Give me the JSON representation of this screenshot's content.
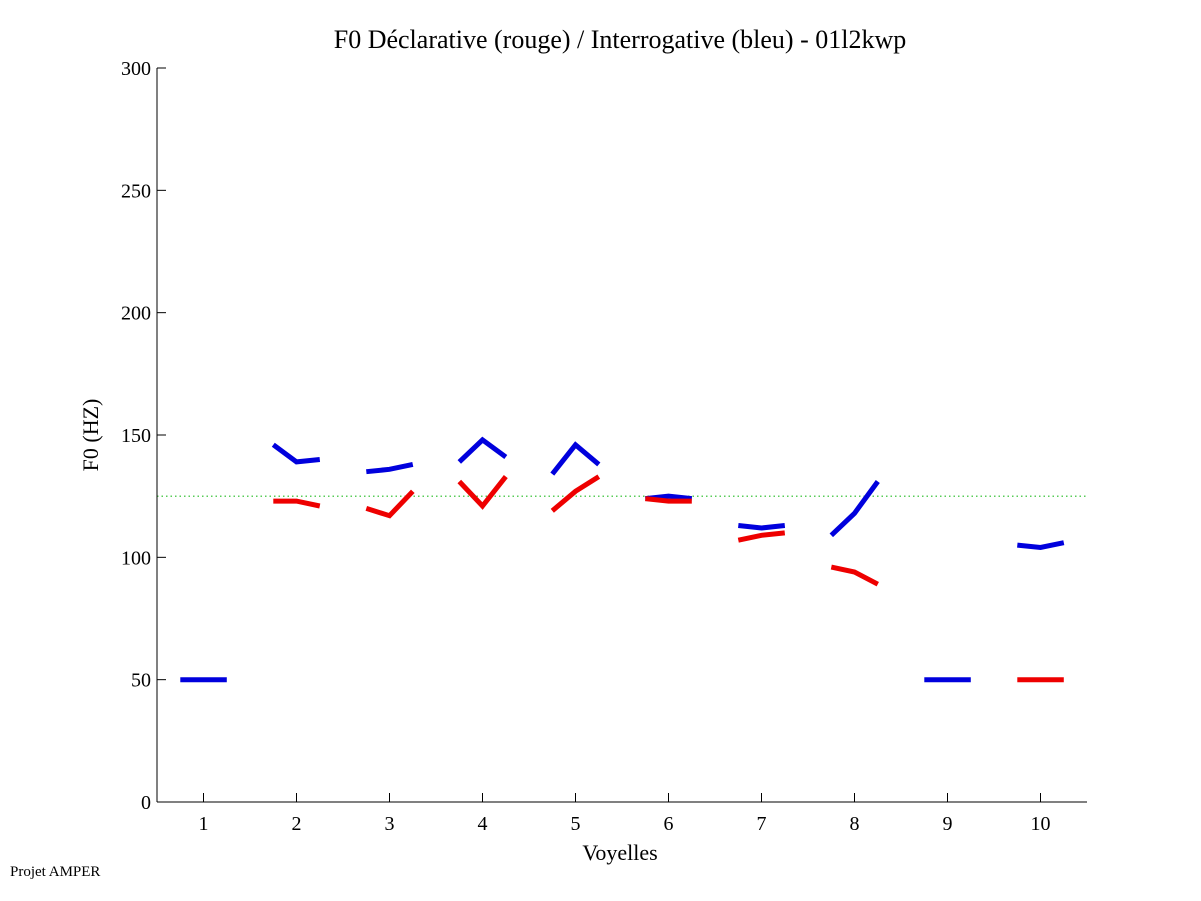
{
  "chart_data": {
    "type": "line",
    "title": "F0 Déclarative (rouge) / Interrogative (bleu) - 01l2kwp",
    "xlabel": "Voyelles",
    "ylabel": "F0 (HZ)",
    "xlim": [
      0.5,
      10.5
    ],
    "ylim": [
      0,
      300
    ],
    "xticks": [
      "1",
      "2",
      "3",
      "4",
      "5",
      "6",
      "7",
      "8",
      "9",
      "10"
    ],
    "yticks": [
      "0",
      "50",
      "100",
      "150",
      "200",
      "250",
      "300"
    ],
    "reference_line": {
      "value": 125,
      "color": "#22bb22",
      "style": "dotted"
    },
    "series": [
      {
        "name": "Interrogative (bleu)",
        "color": "#0000dd",
        "segments": [
          {
            "vowel": 1,
            "x": [
              0.75,
              1.0,
              1.25
            ],
            "y": [
              50,
              50,
              50
            ]
          },
          {
            "vowel": 2,
            "x": [
              1.75,
              2.0,
              2.25
            ],
            "y": [
              146,
              139,
              140
            ]
          },
          {
            "vowel": 3,
            "x": [
              2.75,
              3.0,
              3.25
            ],
            "y": [
              135,
              136,
              138
            ]
          },
          {
            "vowel": 4,
            "x": [
              3.75,
              4.0,
              4.25
            ],
            "y": [
              139,
              148,
              141
            ]
          },
          {
            "vowel": 5,
            "x": [
              4.75,
              5.0,
              5.25
            ],
            "y": [
              134,
              146,
              138
            ]
          },
          {
            "vowel": 6,
            "x": [
              5.75,
              6.0,
              6.25
            ],
            "y": [
              124,
              125,
              124
            ]
          },
          {
            "vowel": 7,
            "x": [
              6.75,
              7.0,
              7.25
            ],
            "y": [
              113,
              112,
              113
            ]
          },
          {
            "vowel": 8,
            "x": [
              7.75,
              8.0,
              8.25
            ],
            "y": [
              109,
              118,
              131
            ]
          },
          {
            "vowel": 9,
            "x": [
              8.75,
              9.0,
              9.25
            ],
            "y": [
              50,
              50,
              50
            ]
          },
          {
            "vowel": 10,
            "x": [
              9.75,
              10.0,
              10.25
            ],
            "y": [
              105,
              104,
              106
            ]
          }
        ]
      },
      {
        "name": "Déclarative (rouge)",
        "color": "#ee0000",
        "segments": [
          {
            "vowel": 2,
            "x": [
              1.75,
              2.0,
              2.25
            ],
            "y": [
              123,
              123,
              121
            ]
          },
          {
            "vowel": 3,
            "x": [
              2.75,
              3.0,
              3.25
            ],
            "y": [
              120,
              117,
              127
            ]
          },
          {
            "vowel": 4,
            "x": [
              3.75,
              4.0,
              4.25
            ],
            "y": [
              131,
              121,
              133
            ]
          },
          {
            "vowel": 5,
            "x": [
              4.75,
              5.0,
              5.25
            ],
            "y": [
              119,
              127,
              133
            ]
          },
          {
            "vowel": 6,
            "x": [
              5.75,
              6.0,
              6.25
            ],
            "y": [
              124,
              123,
              123
            ]
          },
          {
            "vowel": 7,
            "x": [
              6.75,
              7.0,
              7.25
            ],
            "y": [
              107,
              109,
              110
            ]
          },
          {
            "vowel": 8,
            "x": [
              7.75,
              8.0,
              8.25
            ],
            "y": [
              96,
              94,
              89
            ]
          },
          {
            "vowel": 10,
            "x": [
              9.75,
              10.0,
              10.25
            ],
            "y": [
              50,
              50,
              50
            ]
          }
        ]
      }
    ]
  },
  "footer": {
    "text": "Projet AMPER"
  }
}
